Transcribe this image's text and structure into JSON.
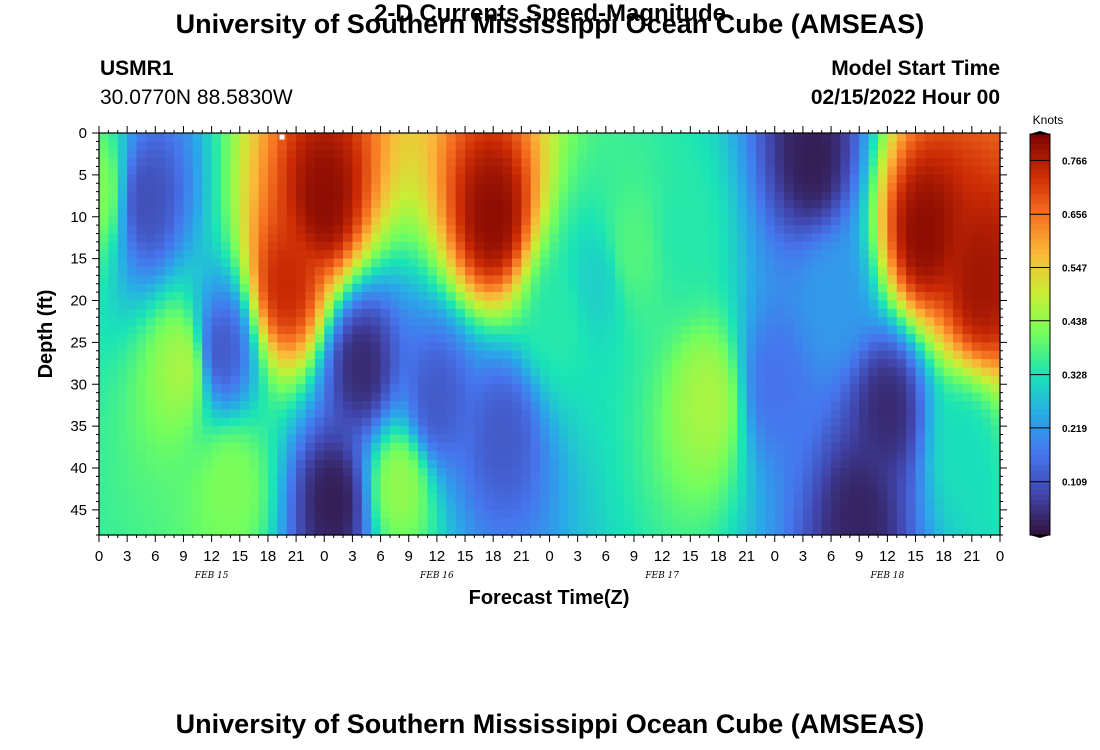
{
  "header": {
    "title": "University of Southern Mississippi Ocean Cube (AMSEAS)",
    "station": "USMR1",
    "coordinates": "30.0770N  88.5830W",
    "subtitle": "2-D Currents Speed-Magnitude",
    "model_start_label": "Model Start Time",
    "model_start_value": "02/15/2022 Hour 00"
  },
  "footer": {
    "title": "University of Southern Mississippi Ocean Cube (AMSEAS)"
  },
  "chart_data": {
    "type": "heatmap",
    "title": "2-D Currents Speed-Magnitude",
    "xlabel": "Forecast Time(Z)",
    "ylabel": "Depth (ft)",
    "x_range_hours": [
      0,
      96
    ],
    "y_range_ft": [
      0,
      48
    ],
    "x_ticks": [
      {
        "hour": 0,
        "label": "0"
      },
      {
        "hour": 3,
        "label": "3"
      },
      {
        "hour": 6,
        "label": "6"
      },
      {
        "hour": 9,
        "label": "9"
      },
      {
        "hour": 12,
        "label": "12"
      },
      {
        "hour": 15,
        "label": "15"
      },
      {
        "hour": 18,
        "label": "18"
      },
      {
        "hour": 21,
        "label": "21"
      },
      {
        "hour": 24,
        "label": "0"
      },
      {
        "hour": 27,
        "label": "3"
      },
      {
        "hour": 30,
        "label": "6"
      },
      {
        "hour": 33,
        "label": "9"
      },
      {
        "hour": 36,
        "label": "12"
      },
      {
        "hour": 39,
        "label": "15"
      },
      {
        "hour": 42,
        "label": "18"
      },
      {
        "hour": 45,
        "label": "21"
      },
      {
        "hour": 48,
        "label": "0"
      },
      {
        "hour": 51,
        "label": "3"
      },
      {
        "hour": 54,
        "label": "6"
      },
      {
        "hour": 57,
        "label": "9"
      },
      {
        "hour": 60,
        "label": "12"
      },
      {
        "hour": 63,
        "label": "15"
      },
      {
        "hour": 66,
        "label": "18"
      },
      {
        "hour": 69,
        "label": "21"
      },
      {
        "hour": 72,
        "label": "0"
      },
      {
        "hour": 75,
        "label": "3"
      },
      {
        "hour": 78,
        "label": "6"
      },
      {
        "hour": 81,
        "label": "9"
      },
      {
        "hour": 84,
        "label": "12"
      },
      {
        "hour": 87,
        "label": "15"
      },
      {
        "hour": 90,
        "label": "18"
      },
      {
        "hour": 93,
        "label": "21"
      },
      {
        "hour": 96,
        "label": "0"
      }
    ],
    "day_labels": [
      {
        "hour": 12,
        "label": "FEB 15"
      },
      {
        "hour": 36,
        "label": "FEB 16"
      },
      {
        "hour": 60,
        "label": "FEB 17"
      },
      {
        "hour": 84,
        "label": "FEB 18"
      }
    ],
    "y_ticks": [
      0,
      5,
      10,
      15,
      20,
      25,
      30,
      35,
      40,
      45
    ],
    "colorbar": {
      "unit": "Knots",
      "range": [
        0.0,
        0.82
      ],
      "ticks": [
        "0.766",
        "0.656",
        "0.547",
        "0.438",
        "0.328",
        "0.219",
        "0.109"
      ]
    },
    "features": [
      {
        "hour": 0,
        "depth": 7,
        "value": 0.42
      },
      {
        "hour": 9,
        "depth": 28,
        "value": 0.46
      },
      {
        "hour": 14,
        "depth": 42,
        "value": 0.42
      },
      {
        "hour": 5,
        "depth": 8,
        "value": 0.1
      },
      {
        "hour": 24,
        "depth": 8,
        "value": 0.8
      },
      {
        "hour": 20,
        "depth": 18,
        "value": 0.74
      },
      {
        "hour": 13,
        "depth": 26,
        "value": 0.12
      },
      {
        "hour": 25,
        "depth": 44,
        "value": 0.02
      },
      {
        "hour": 28,
        "depth": 28,
        "value": 0.04
      },
      {
        "hour": 32,
        "depth": 42,
        "value": 0.44
      },
      {
        "hour": 42,
        "depth": 10,
        "value": 0.8
      },
      {
        "hour": 43,
        "depth": 36,
        "value": 0.12
      },
      {
        "hour": 36,
        "depth": 32,
        "value": 0.12
      },
      {
        "hour": 49,
        "depth": 22,
        "value": 0.34
      },
      {
        "hour": 53,
        "depth": 18,
        "value": 0.3
      },
      {
        "hour": 57,
        "depth": 14,
        "value": 0.38
      },
      {
        "hour": 65,
        "depth": 32,
        "value": 0.46
      },
      {
        "hour": 62,
        "depth": 12,
        "value": 0.34
      },
      {
        "hour": 76,
        "depth": 3,
        "value": 0.02
      },
      {
        "hour": 72,
        "depth": 30,
        "value": 0.16
      },
      {
        "hour": 81,
        "depth": 46,
        "value": 0.03
      },
      {
        "hour": 84,
        "depth": 33,
        "value": 0.04
      },
      {
        "hour": 88,
        "depth": 12,
        "value": 0.8
      },
      {
        "hour": 94,
        "depth": 18,
        "value": 0.78
      },
      {
        "hour": 92,
        "depth": 38,
        "value": 0.32
      },
      {
        "hour": 78,
        "depth": 20,
        "value": 0.22
      }
    ],
    "marker": {
      "hour": 19.5,
      "depth": 0.3
    }
  }
}
